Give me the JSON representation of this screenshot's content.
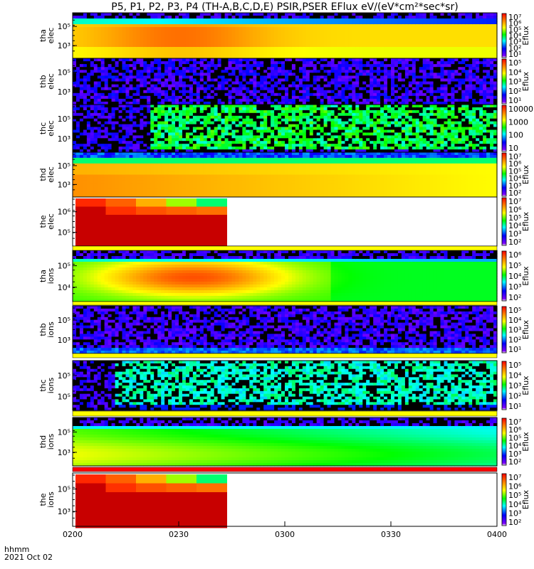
{
  "title": "P5, P1, P2, P3, P4 (TH-A,B,C,D,E) PSIR,PSER EFlux eV/(eV*cm²*sec*sr)",
  "time_axis": {
    "ticks": [
      "0200",
      "0230",
      "0300",
      "0330",
      "0400"
    ],
    "label_line1": "hhmm",
    "label_line2": "2021 Oct 02"
  },
  "chart_data": {
    "type": "heatmap",
    "x_range": [
      "02:00",
      "04:00"
    ],
    "panels": [
      {
        "probe": "tha",
        "species": "elec",
        "ylabel": [
          "tha",
          "elec"
        ],
        "yticks": [
          "10⁵",
          "10³"
        ],
        "cbar_label": "Eflux",
        "cbar_ticks": [
          "10⁷",
          "10⁶",
          "10⁵",
          "10⁴",
          "10³",
          "10²",
          "10¹"
        ],
        "colormap": "rainbow",
        "scale": "log"
      },
      {
        "probe": "thb",
        "species": "elec",
        "ylabel": [
          "thb",
          "elec"
        ],
        "yticks": [
          "10⁵",
          "10³"
        ],
        "cbar_label": "Eflux",
        "cbar_ticks": [
          "10⁵",
          "10⁴",
          "10³",
          "10²",
          "10¹"
        ],
        "colormap": "rainbow",
        "scale": "log"
      },
      {
        "probe": "thc",
        "species": "elec",
        "ylabel": [
          "thc",
          "elec"
        ],
        "yticks": [
          "10⁵",
          "10³"
        ],
        "cbar_label": "",
        "cbar_ticks": [
          "10000",
          "1000",
          "100",
          "10"
        ],
        "colormap": "rainbow",
        "scale": "log"
      },
      {
        "probe": "thd",
        "species": "elec",
        "ylabel": [
          "thd",
          "elec"
        ],
        "yticks": [
          "10⁵",
          "10³"
        ],
        "cbar_label": "Eflux",
        "cbar_ticks": [
          "10⁷",
          "10⁶",
          "10⁵",
          "10⁴",
          "10³",
          "10²"
        ],
        "colormap": "rainbow",
        "scale": "log"
      },
      {
        "probe": "the",
        "species": "elec",
        "ylabel": [
          "the",
          "elec"
        ],
        "yticks": [
          "10⁶",
          "10⁵"
        ],
        "cbar_label": "Eflux",
        "cbar_ticks": [
          "10⁷",
          "10⁶",
          "10⁵",
          "10⁴",
          "10³",
          "10²"
        ],
        "colormap": "rainbow",
        "scale": "log"
      },
      {
        "probe": "tha",
        "species": "ions",
        "ylabel": [
          "tha",
          "ions"
        ],
        "yticks": [
          "10⁵",
          "10⁴"
        ],
        "cbar_label": "Eflux",
        "cbar_ticks": [
          "10⁶",
          "10⁵",
          "10⁴",
          "10³",
          "10²"
        ],
        "colormap": "rainbow",
        "scale": "log"
      },
      {
        "probe": "thb",
        "species": "ions",
        "ylabel": [
          "thb",
          "ions"
        ],
        "yticks": [
          "10⁵",
          "10³"
        ],
        "cbar_label": "Eflux",
        "cbar_ticks": [
          "10⁵",
          "10⁴",
          "10³",
          "10²",
          "10¹"
        ],
        "colormap": "rainbow",
        "scale": "log"
      },
      {
        "probe": "thc",
        "species": "ions",
        "ylabel": [
          "thc",
          "ions"
        ],
        "yticks": [
          "10⁵",
          "10⁵"
        ],
        "cbar_label": "Eflux",
        "cbar_ticks": [
          "10⁵",
          "10⁴",
          "10³",
          "10²",
          "10¹"
        ],
        "colormap": "rainbow",
        "scale": "log"
      },
      {
        "probe": "thd",
        "species": "ions",
        "ylabel": [
          "thd",
          "ions"
        ],
        "yticks": [
          "10⁵",
          "10³"
        ],
        "cbar_label": "Eflux",
        "cbar_ticks": [
          "10⁷",
          "10⁶",
          "10⁵",
          "10⁴",
          "10³",
          "10²"
        ],
        "colormap": "rainbow",
        "scale": "log"
      },
      {
        "probe": "the",
        "species": "ions",
        "ylabel": [
          "the",
          "ions"
        ],
        "yticks": [
          "10⁵",
          "10³"
        ],
        "cbar_label": "Eflux",
        "cbar_ticks": [
          "10⁷",
          "10⁶",
          "10⁵",
          "10⁴",
          "10³",
          "10²"
        ],
        "colormap": "rainbow",
        "scale": "log"
      }
    ]
  }
}
